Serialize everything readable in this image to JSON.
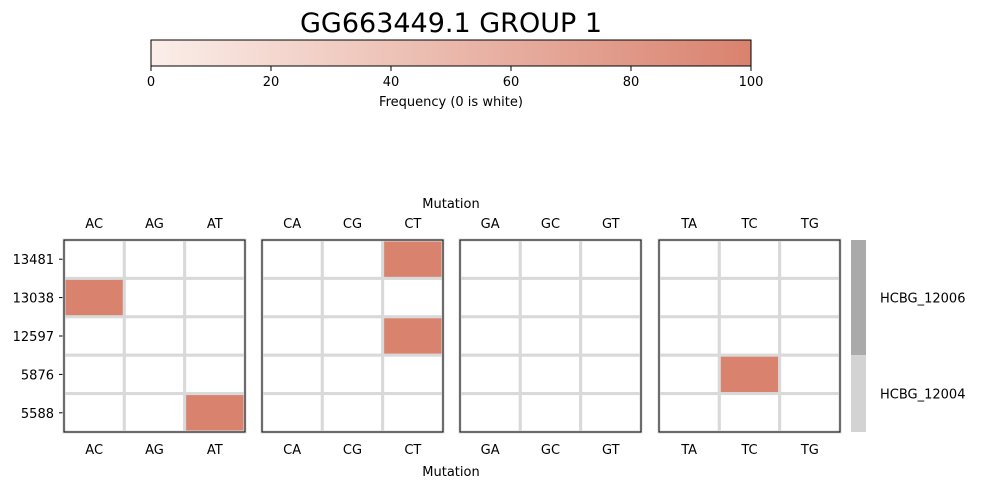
{
  "chart_data": {
    "type": "heatmap",
    "title": "GG663449.1 GROUP 1",
    "colorbar": {
      "label": "Frequency (0 is white)",
      "range": [
        0,
        100
      ],
      "ticks": [
        "0",
        "20",
        "40",
        "60",
        "80",
        "100"
      ],
      "color_low": "#fbeee9",
      "color_high": "#d9826e"
    },
    "xlabel": "Mutation",
    "rows": [
      "13481",
      "13038",
      "12597",
      "5876",
      "5588"
    ],
    "panels": [
      {
        "columns": [
          "AC",
          "AG",
          "AT"
        ],
        "values": [
          [
            0,
            0,
            0
          ],
          [
            100,
            0,
            0
          ],
          [
            0,
            0,
            0
          ],
          [
            0,
            0,
            0
          ],
          [
            0,
            0,
            100
          ]
        ]
      },
      {
        "columns": [
          "CA",
          "CG",
          "CT"
        ],
        "values": [
          [
            0,
            0,
            100
          ],
          [
            0,
            0,
            0
          ],
          [
            0,
            0,
            100
          ],
          [
            0,
            0,
            0
          ],
          [
            0,
            0,
            0
          ]
        ]
      },
      {
        "columns": [
          "GA",
          "GC",
          "GT"
        ],
        "values": [
          [
            0,
            0,
            0
          ],
          [
            0,
            0,
            0
          ],
          [
            0,
            0,
            0
          ],
          [
            0,
            0,
            0
          ],
          [
            0,
            0,
            0
          ]
        ]
      },
      {
        "columns": [
          "TA",
          "TC",
          "TG"
        ],
        "values": [
          [
            0,
            0,
            0
          ],
          [
            0,
            0,
            0
          ],
          [
            0,
            0,
            0
          ],
          [
            0,
            100,
            0
          ],
          [
            0,
            0,
            0
          ]
        ]
      }
    ],
    "groups": [
      {
        "name": "HCBG_12006",
        "rows": 3,
        "color": "#aaaaaa"
      },
      {
        "name": "HCBG_12004",
        "rows": 2,
        "color": "#d3d3d3"
      }
    ],
    "cell_grid_color": "#d9d9d9"
  }
}
